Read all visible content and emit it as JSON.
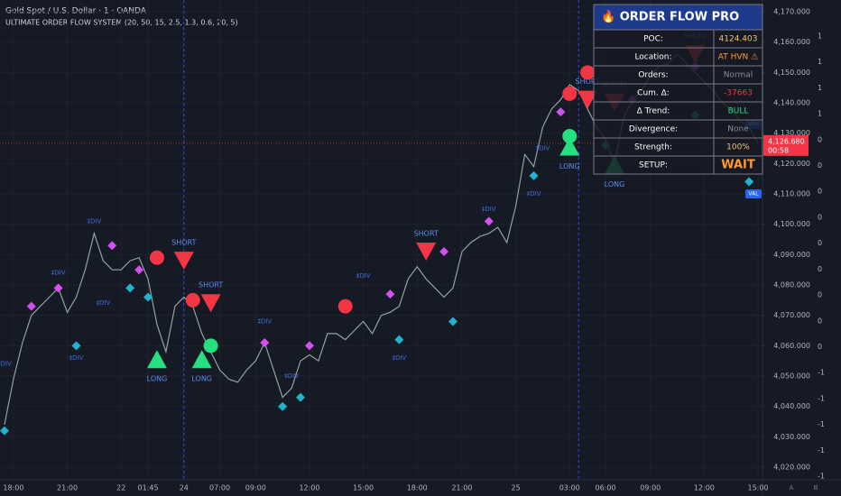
{
  "chart_data": {
    "type": "line",
    "title": "Gold Spot / U.S. Dollar · 1 · OANDA",
    "subtitle": "ULTIMATE ORDER FLOW SYSTEM (20, 50, 15, 2.5, 1.3, 0.6, 20, 5)",
    "color": "#8fa3a0",
    "grid": true,
    "categories": [
      null,
      "18:00",
      null,
      null,
      null,
      null,
      null,
      "21:00",
      null,
      null,
      null,
      null,
      null,
      "22",
      null,
      null,
      "01:45",
      null,
      null,
      null,
      "24",
      null,
      null,
      null,
      "07:00",
      null,
      null,
      null,
      "09:00",
      null,
      null,
      null,
      null,
      null,
      "12:00",
      null,
      null,
      null,
      null,
      null,
      "15:00",
      null,
      null,
      null,
      null,
      null,
      "18:00",
      null,
      null,
      null,
      null,
      "21:00",
      null,
      null,
      null,
      null,
      null,
      "25",
      null,
      null,
      null,
      null,
      null,
      "03:00",
      null,
      null,
      null,
      "06:00",
      null,
      null,
      null,
      null,
      "09:00",
      null,
      null,
      null,
      null,
      null,
      "12:00",
      null,
      null,
      null,
      null,
      null,
      "15:00"
    ],
    "values": [
      4034,
      4049,
      4061,
      4070,
      4073,
      4076,
      4079,
      4071,
      4076,
      4085,
      4097,
      4088,
      4085,
      4085,
      4088,
      4089,
      4082,
      4067,
      4058,
      4073,
      4076,
      4073,
      4064,
      4058,
      4052,
      4049,
      4048,
      4052,
      4055,
      4061,
      4052,
      4043,
      4046,
      4055,
      4057,
      4055,
      4064,
      4064,
      4062,
      4065,
      4068,
      4064,
      4070,
      4071,
      4073,
      4082,
      4086,
      4082,
      4079,
      4076,
      4079,
      4091,
      4094,
      4096,
      4097,
      4099,
      4094,
      4106,
      4123,
      4119,
      4132,
      4138,
      4141,
      4146,
      4144,
      4138,
      4132,
      4128,
      4120,
      4135,
      4141,
      4144,
      4149,
      4152,
      4153,
      4156,
      4153,
      4150,
      4147,
      4144,
      4140,
      4138,
      4134,
      4132,
      4126.68
    ],
    "ylim": [
      4015.86,
      4173.86
    ],
    "yticks": [
      {
        "value": 4170,
        "label": "4,170.000"
      },
      {
        "value": 4160,
        "label": "4,160.000"
      },
      {
        "value": 4150,
        "label": "4,150.000"
      },
      {
        "value": 4140,
        "label": "4,140.000"
      },
      {
        "value": 4130,
        "label": "4,130.000"
      },
      {
        "value": 4120,
        "label": "4,120.000"
      },
      {
        "value": 4110,
        "label": "4,110.000"
      },
      {
        "value": 4100,
        "label": "4,100.000"
      },
      {
        "value": 4090,
        "label": "4,090.000"
      },
      {
        "value": 4080,
        "label": "4,080.000"
      },
      {
        "value": 4070,
        "label": "4,070.000"
      },
      {
        "value": 4060,
        "label": "4,060.000"
      },
      {
        "value": 4050,
        "label": "4,050.000"
      },
      {
        "value": 4040,
        "label": "4,040.000"
      },
      {
        "value": 4030,
        "label": "4,030.000"
      },
      {
        "value": 4020,
        "label": "4,020.000"
      }
    ],
    "y2_labels": [
      "1",
      "1",
      "1",
      "1",
      "0",
      "0",
      "0",
      "0",
      "0",
      "0",
      "0",
      "0",
      "0",
      "-1",
      "-1",
      "-1",
      "-1",
      "-1"
    ],
    "session_lines": [
      20,
      64
    ],
    "last_price": {
      "value": 4126.68,
      "label": "4,126.680",
      "countdown": "00:58",
      "color": "#f23645"
    },
    "levels": [
      {
        "label": "VAH",
        "value": 4133
      },
      {
        "label": "VAL",
        "value": 4110
      }
    ],
    "level_color": "#2962ff",
    "signal_colors": {
      "long": "#26e07f",
      "short": "#f23645",
      "circle_red": "#f23645",
      "circle_green": "#26e07f",
      "diamond_magenta": "#d64ff0",
      "diamond_cyan": "#1fb5d0",
      "div": "#3d6fe0"
    },
    "signals": [
      {
        "kind": "long",
        "x": 17,
        "y": 4055,
        "label": "LONG"
      },
      {
        "kind": "long",
        "x": 22,
        "y": 4055,
        "label": "LONG"
      },
      {
        "kind": "long",
        "x": 63,
        "y": 4125,
        "label": "LONG"
      },
      {
        "kind": "long",
        "x": 68,
        "y": 4119,
        "label": "LONG"
      },
      {
        "kind": "short",
        "x": 20,
        "y": 4088,
        "label": "SHORT"
      },
      {
        "kind": "short",
        "x": 23,
        "y": 4074,
        "label": "SHORT"
      },
      {
        "kind": "short",
        "x": 47,
        "y": 4091,
        "label": "SHORT"
      },
      {
        "kind": "short",
        "x": 65,
        "y": 4141,
        "label": "SHORT"
      },
      {
        "kind": "short",
        "x": 68,
        "y": 4140,
        "label": "SHORT"
      },
      {
        "kind": "short",
        "x": 77,
        "y": 4156,
        "label": "SHORT"
      },
      {
        "kind": "circle_red",
        "x": 17,
        "y": 4089
      },
      {
        "kind": "circle_red",
        "x": 21,
        "y": 4075
      },
      {
        "kind": "circle_red",
        "x": 38,
        "y": 4073
      },
      {
        "kind": "circle_red",
        "x": 63,
        "y": 4143
      },
      {
        "kind": "circle_red",
        "x": 65,
        "y": 4150
      },
      {
        "kind": "circle_green",
        "x": 23,
        "y": 4060
      },
      {
        "kind": "circle_green",
        "x": 63,
        "y": 4129
      },
      {
        "kind": "diamond_magenta",
        "x": 3,
        "y": 4073
      },
      {
        "kind": "diamond_magenta",
        "x": 6,
        "y": 4079
      },
      {
        "kind": "diamond_magenta",
        "x": 12,
        "y": 4093
      },
      {
        "kind": "diamond_magenta",
        "x": 15,
        "y": 4085
      },
      {
        "kind": "diamond_magenta",
        "x": 29,
        "y": 4061
      },
      {
        "kind": "diamond_magenta",
        "x": 34,
        "y": 4060
      },
      {
        "kind": "diamond_magenta",
        "x": 43,
        "y": 4077
      },
      {
        "kind": "diamond_magenta",
        "x": 49,
        "y": 4091
      },
      {
        "kind": "diamond_magenta",
        "x": 54,
        "y": 4101
      },
      {
        "kind": "diamond_magenta",
        "x": 62,
        "y": 4137
      },
      {
        "kind": "diamond_magenta",
        "x": 70,
        "y": 4141
      },
      {
        "kind": "diamond_magenta",
        "x": 77,
        "y": 4152
      },
      {
        "kind": "diamond_cyan",
        "x": 0,
        "y": 4032
      },
      {
        "kind": "diamond_cyan",
        "x": 8,
        "y": 4060
      },
      {
        "kind": "diamond_cyan",
        "x": 14,
        "y": 4079
      },
      {
        "kind": "diamond_cyan",
        "x": 16,
        "y": 4076
      },
      {
        "kind": "diamond_cyan",
        "x": 31,
        "y": 4040
      },
      {
        "kind": "diamond_cyan",
        "x": 33,
        "y": 4043
      },
      {
        "kind": "diamond_cyan",
        "x": 44,
        "y": 4062
      },
      {
        "kind": "diamond_cyan",
        "x": 50,
        "y": 4068
      },
      {
        "kind": "diamond_cyan",
        "x": 59,
        "y": 4116
      },
      {
        "kind": "diamond_cyan",
        "x": 67,
        "y": 4126
      },
      {
        "kind": "diamond_cyan",
        "x": 77,
        "y": 4136
      },
      {
        "kind": "diamond_cyan",
        "x": 83,
        "y": 4114
      },
      {
        "kind": "div",
        "x": 10,
        "y": 4101,
        "label": "‡DIV"
      },
      {
        "kind": "div",
        "x": 6,
        "y": 4084,
        "label": "‡DIV"
      },
      {
        "kind": "div",
        "x": 0,
        "y": 4054,
        "label": "‡DIV"
      },
      {
        "kind": "div",
        "x": 8,
        "y": 4056,
        "label": "‡DIV"
      },
      {
        "kind": "div",
        "x": 11,
        "y": 4074,
        "label": "‡DIV"
      },
      {
        "kind": "div",
        "x": 29,
        "y": 4068,
        "label": "‡DIV"
      },
      {
        "kind": "div",
        "x": 32,
        "y": 4050,
        "label": "‡DIV"
      },
      {
        "kind": "div",
        "x": 40,
        "y": 4083,
        "label": "‡DIV"
      },
      {
        "kind": "div",
        "x": 44,
        "y": 4056,
        "label": "‡DIV"
      },
      {
        "kind": "div",
        "x": 54,
        "y": 4105,
        "label": "‡DIV"
      },
      {
        "kind": "div",
        "x": 60,
        "y": 4125,
        "label": "‡DIV"
      },
      {
        "kind": "div",
        "x": 59,
        "y": 4110,
        "label": "‡DIV"
      }
    ],
    "table": {
      "title": "🔥 ORDER FLOW PRO",
      "rows": [
        {
          "label": "POC:",
          "value": "4124.403",
          "color": "#f5c26b"
        },
        {
          "label": "Location:",
          "value": "AT HVN ⚠",
          "color": "#ff9a2e"
        },
        {
          "label": "Orders:",
          "value": "Normal",
          "color": "#8a8f9a"
        },
        {
          "label": "Cum. Δ:",
          "value": "-37663",
          "color": "#f23645"
        },
        {
          "label": "Δ Trend:",
          "value": "BULL",
          "color": "#26e07f"
        },
        {
          "label": "Divergence:",
          "value": "None",
          "color": "#8a8f9a"
        },
        {
          "label": "Strength:",
          "value": "100%",
          "color": "#f5c26b"
        },
        {
          "label": "SETUP:",
          "value": "WAIT",
          "color": "#ff9a2e"
        }
      ]
    },
    "toolbar": [
      "A",
      "B"
    ]
  }
}
